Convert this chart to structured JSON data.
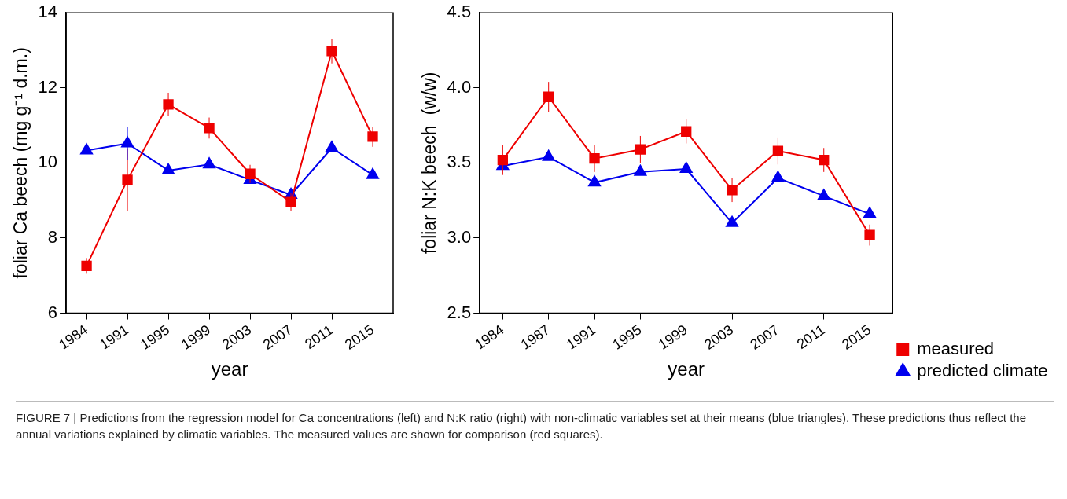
{
  "chart_data": [
    {
      "type": "line",
      "xlabel": "year",
      "ylabel": "foliar Ca beech (mg g⁻¹ d.m.)",
      "categories": [
        "1984",
        "1991",
        "1995",
        "1999",
        "2003",
        "2007",
        "2011",
        "2015"
      ],
      "ylim": [
        6,
        14
      ],
      "yticks": [
        6,
        8,
        10,
        12,
        14
      ],
      "grid": false,
      "legend": false,
      "series": [
        {
          "color": "#ee0000",
          "marker": "square",
          "values": [
            7.26,
            9.55,
            11.56,
            10.93,
            9.71,
            8.96,
            12.98,
            10.7
          ],
          "errors": [
            0.21,
            0.84,
            0.31,
            0.28,
            0.24,
            0.23,
            0.33,
            0.27
          ]
        },
        {
          "color": "#0000ee",
          "marker": "triangle",
          "values": [
            10.33,
            10.52,
            9.8,
            9.96,
            9.55,
            9.15,
            10.4,
            9.68
          ],
          "errors": [
            null,
            0.43,
            null,
            null,
            null,
            null,
            null,
            null
          ]
        }
      ],
      "annotations": [
        "FIGURE 7 | Predictions from the regression model for Ca concentrations (left) and N:K ratio (right) with non-climatic variables set at their means (blue triangles). These predictions thus reflect the annual variations explained by climatic variables. The measured values are shown for comparison (red squares)."
      ]
    },
    {
      "type": "line",
      "xlabel": "year",
      "ylabel": "foliar N:K beech  (w/w)",
      "categories": [
        "1984",
        "1987",
        "1991",
        "1995",
        "1999",
        "2003",
        "2007",
        "2011",
        "2015"
      ],
      "ylim": [
        2.5,
        4.5
      ],
      "yticks": [
        {
          "value": 2.5,
          "label": "2.5"
        },
        {
          "value": 3,
          "label": "3.0"
        },
        {
          "value": 3.5,
          "label": "3.5"
        },
        {
          "value": 4,
          "label": "4.0"
        },
        {
          "value": 4.5,
          "label": "4.5"
        }
      ],
      "grid": false,
      "legend": "bottom right",
      "series": [
        {
          "name": "measured",
          "color": "#ee0000",
          "marker": "square",
          "values": [
            3.52,
            3.94,
            3.53,
            3.59,
            3.71,
            3.32,
            3.58,
            3.52,
            3.02
          ],
          "errors": [
            0.1,
            0.1,
            0.09,
            0.09,
            0.08,
            0.08,
            0.09,
            0.08,
            0.07
          ]
        },
        {
          "name": "predicted climate",
          "color": "#0000ee",
          "marker": "triangle",
          "values": [
            3.48,
            3.54,
            3.37,
            3.44,
            3.46,
            3.1,
            3.4,
            3.28,
            3.16
          ]
        }
      ]
    }
  ]
}
